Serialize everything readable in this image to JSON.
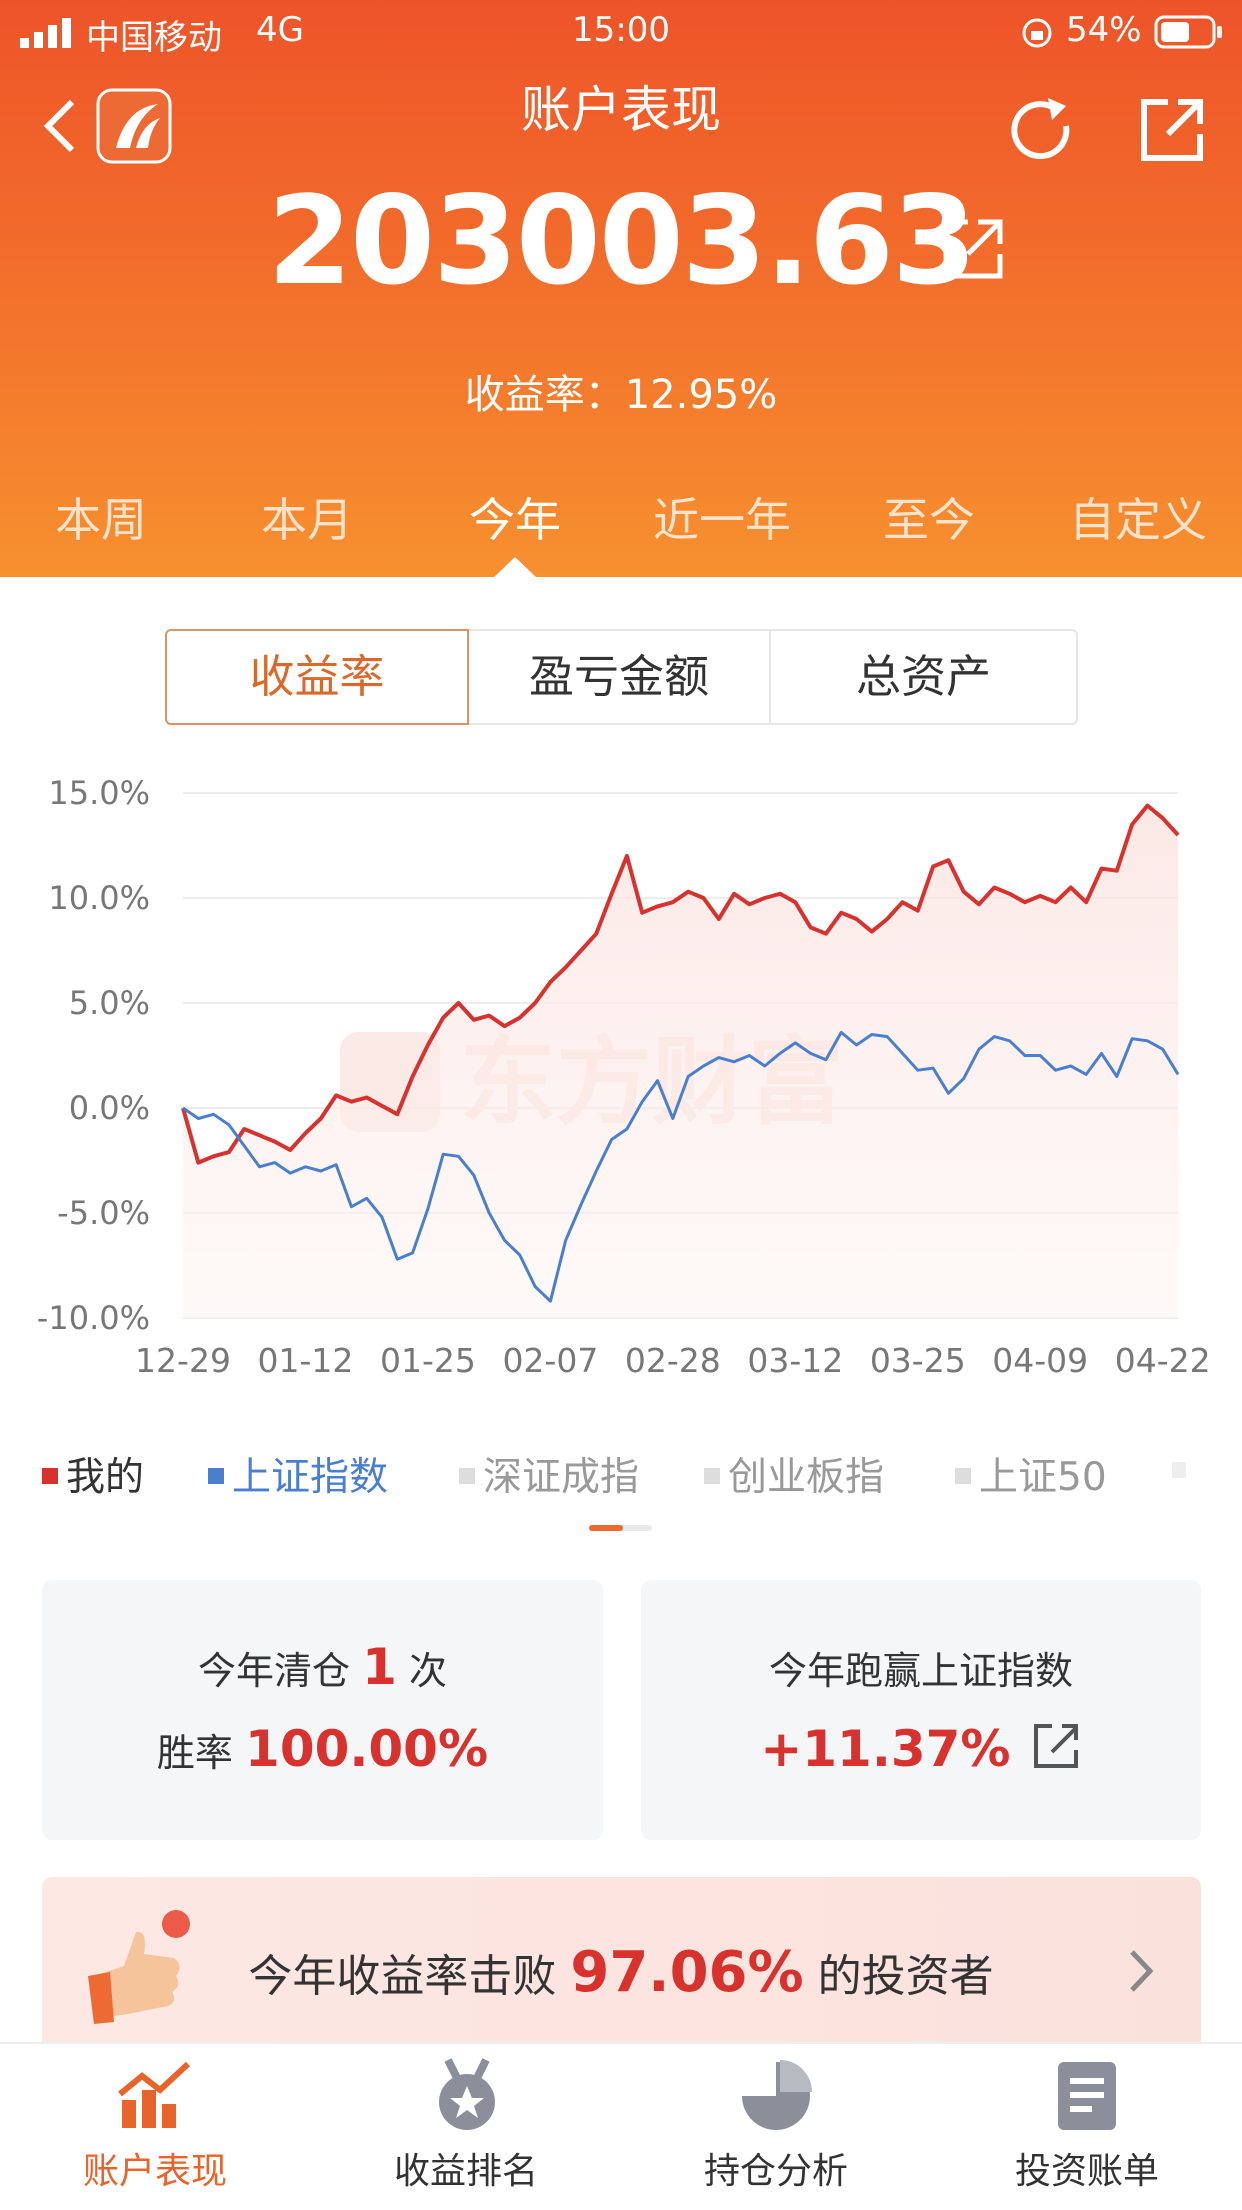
{
  "status_bar": {
    "carrier": "中国移动",
    "network": "4G",
    "time": "15:00",
    "battery": "54%"
  },
  "header": {
    "title": "账户表现",
    "total_assets": "203003.63",
    "return_rate": "收益率：12.95%"
  },
  "period_tabs": {
    "items": [
      "本周",
      "本月",
      "今年",
      "近一年",
      "至今",
      "自定义"
    ],
    "active": 2
  },
  "metric_tabs": {
    "items": [
      "收益率",
      "盈亏金额",
      "总资产"
    ],
    "active": 0
  },
  "chart_data": {
    "type": "line",
    "watermark": "东方财富",
    "categories": [
      "12-29",
      null,
      null,
      null,
      null,
      null,
      null,
      null,
      "01-12",
      null,
      null,
      null,
      null,
      null,
      null,
      null,
      "01-25",
      null,
      null,
      null,
      null,
      null,
      null,
      null,
      "02-07",
      null,
      null,
      null,
      null,
      null,
      null,
      null,
      "02-28",
      null,
      null,
      null,
      null,
      null,
      null,
      null,
      "03-12",
      null,
      null,
      null,
      null,
      null,
      null,
      null,
      "03-25",
      null,
      null,
      null,
      null,
      null,
      null,
      null,
      "04-09",
      null,
      null,
      null,
      null,
      null,
      null,
      null,
      "04-22",
      null
    ],
    "series": [
      {
        "name": "我的",
        "color": "#d8322f",
        "values": [
          0,
          -2.6,
          -2.3,
          -2.1,
          -1.0,
          -1.3,
          -1.6,
          -2.0,
          -1.2,
          -0.5,
          0.6,
          0.3,
          0.5,
          0.1,
          -0.3,
          1.5,
          3.0,
          4.3,
          5.0,
          4.2,
          4.4,
          3.9,
          4.3,
          5.0,
          6.0,
          6.7,
          7.5,
          8.3,
          10.2,
          12.0,
          9.3,
          9.6,
          9.8,
          10.3,
          10.0,
          9.0,
          10.2,
          9.7,
          10.0,
          10.2,
          9.8,
          8.6,
          8.3,
          9.3,
          9.0,
          8.4,
          9.0,
          9.8,
          9.4,
          11.5,
          11.8,
          10.3,
          9.7,
          10.5,
          10.2,
          9.8,
          10.1,
          9.8,
          10.5,
          9.8,
          11.4,
          11.3,
          13.5,
          14.4,
          13.8,
          13.0
        ]
      },
      {
        "name": "上证指数",
        "color": "#4a7fd0",
        "values": [
          0,
          -0.5,
          -0.3,
          -0.8,
          -1.8,
          -2.8,
          -2.6,
          -3.1,
          -2.8,
          -3.0,
          -2.7,
          -4.7,
          -4.3,
          -5.2,
          -7.2,
          -6.9,
          -4.8,
          -2.2,
          -2.3,
          -3.2,
          -5.0,
          -6.3,
          -7.0,
          -8.5,
          -9.2,
          -6.3,
          -4.6,
          -3.0,
          -1.5,
          -1.0,
          0.3,
          1.3,
          -0.5,
          1.5,
          2.0,
          2.4,
          2.2,
          2.5,
          2.0,
          2.6,
          3.1,
          2.6,
          2.3,
          3.6,
          3.0,
          3.5,
          3.4,
          2.6,
          1.8,
          1.9,
          0.7,
          1.4,
          2.8,
          3.4,
          3.2,
          2.5,
          2.5,
          1.8,
          2.0,
          1.6,
          2.6,
          1.5,
          3.3,
          3.2,
          2.8,
          1.6
        ]
      }
    ],
    "inactive_legend": [
      "深证成指",
      "创业板指",
      "上证50"
    ],
    "ylim": [
      -10,
      15
    ],
    "yticks": [
      {
        "value": 15,
        "label": "15.0%"
      },
      {
        "value": 10,
        "label": "10.0%"
      },
      {
        "value": 5,
        "label": "5.0%"
      },
      {
        "value": 0,
        "label": "0.0%"
      },
      {
        "value": -5,
        "label": "-5.0%"
      },
      {
        "value": -10,
        "label": "-10.0%"
      }
    ],
    "grid": true
  },
  "stats": {
    "cleared": {
      "prefix": "今年清仓",
      "count": "1",
      "suffix": "次"
    },
    "win_rate": {
      "label": "胜率",
      "value": "100.00%"
    },
    "beat_index": {
      "label": "今年跑赢上证指数",
      "value": "+11.37%"
    }
  },
  "banner": {
    "prefix": "今年收益率击败",
    "value": "97.06%",
    "suffix": "的投资者"
  },
  "bottom_nav": {
    "items": [
      "账户表现",
      "收益排名",
      "持仓分析",
      "投资账单"
    ],
    "active": 0
  }
}
